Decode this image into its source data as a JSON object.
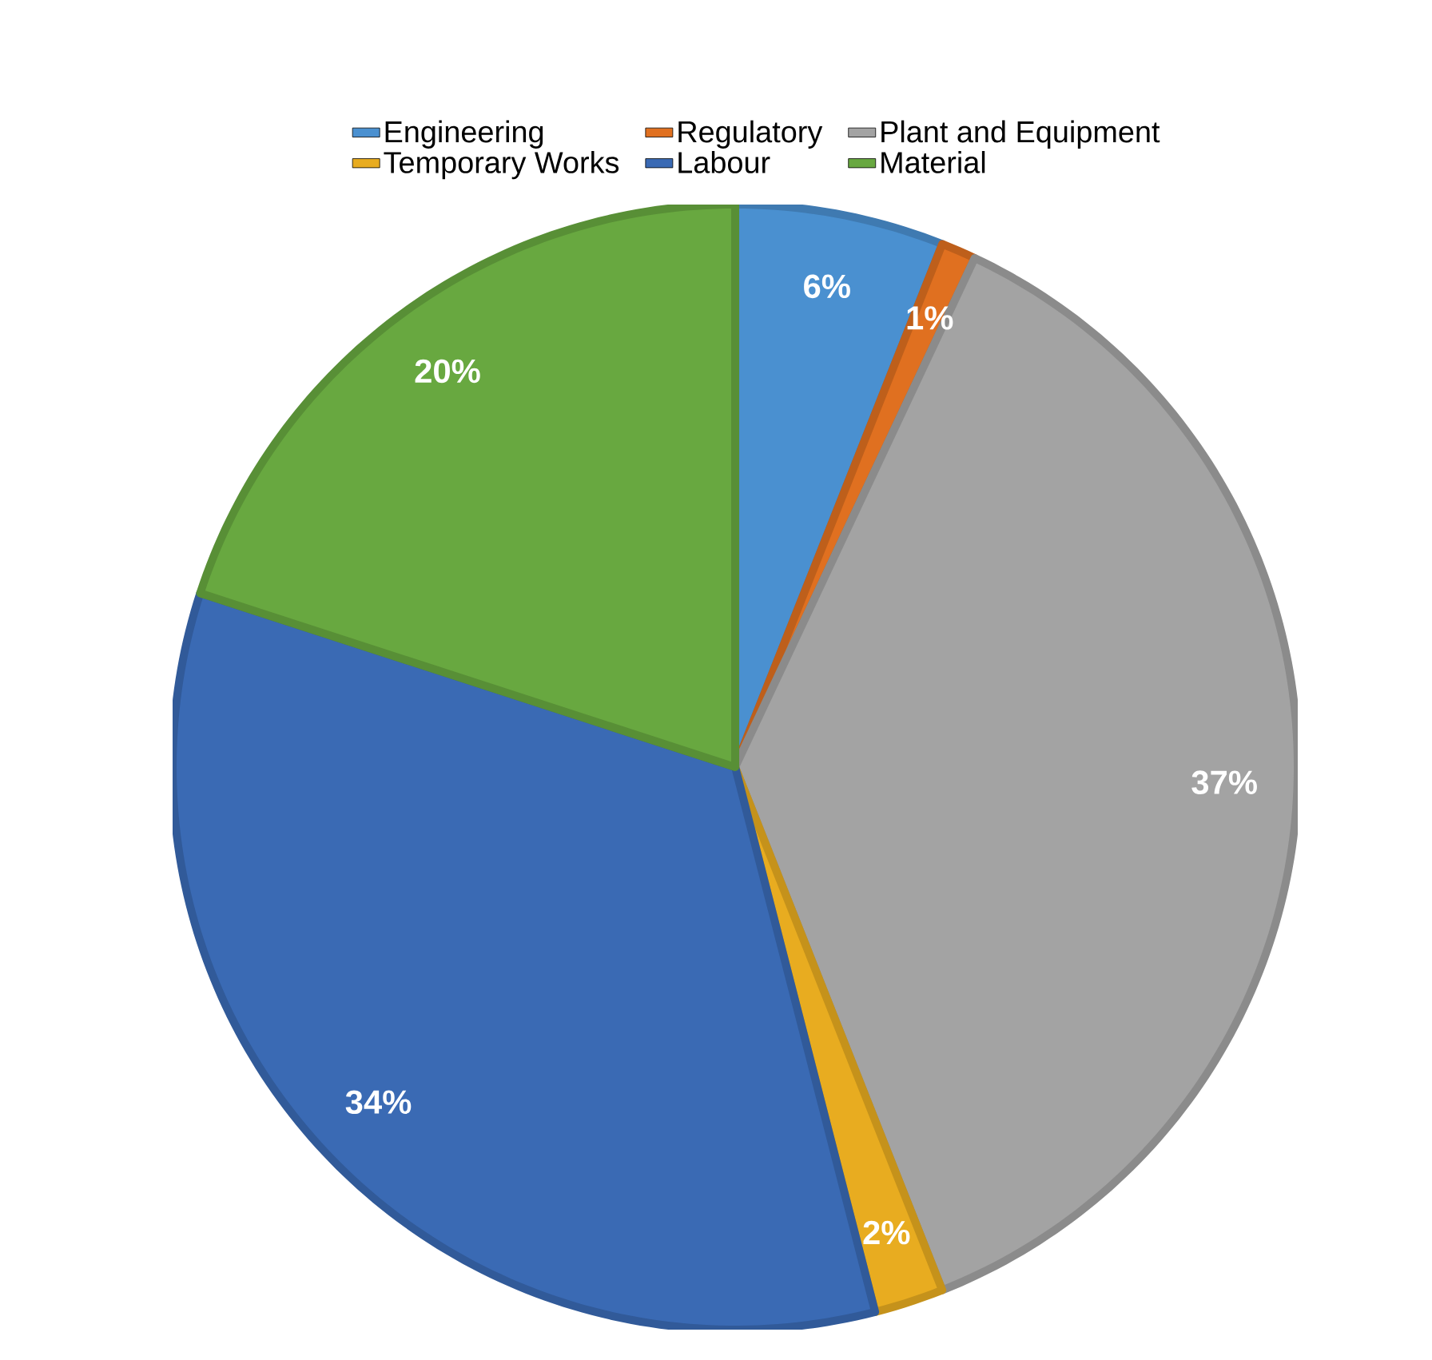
{
  "chart_data": {
    "type": "pie",
    "categories": [
      "Engineering",
      "Regulatory",
      "Plant and Equipment",
      "Temporary Works",
      "Labour",
      "Material"
    ],
    "values": [
      6,
      1,
      37,
      2,
      34,
      20
    ],
    "colors": [
      "#4a90d0",
      "#e07020",
      "#a3a3a3",
      "#e8ac20",
      "#3a6ab4",
      "#68a840"
    ],
    "value_labels": [
      "6%",
      "1%",
      "37%",
      "2%",
      "34%",
      "20%"
    ],
    "legend": "top"
  }
}
